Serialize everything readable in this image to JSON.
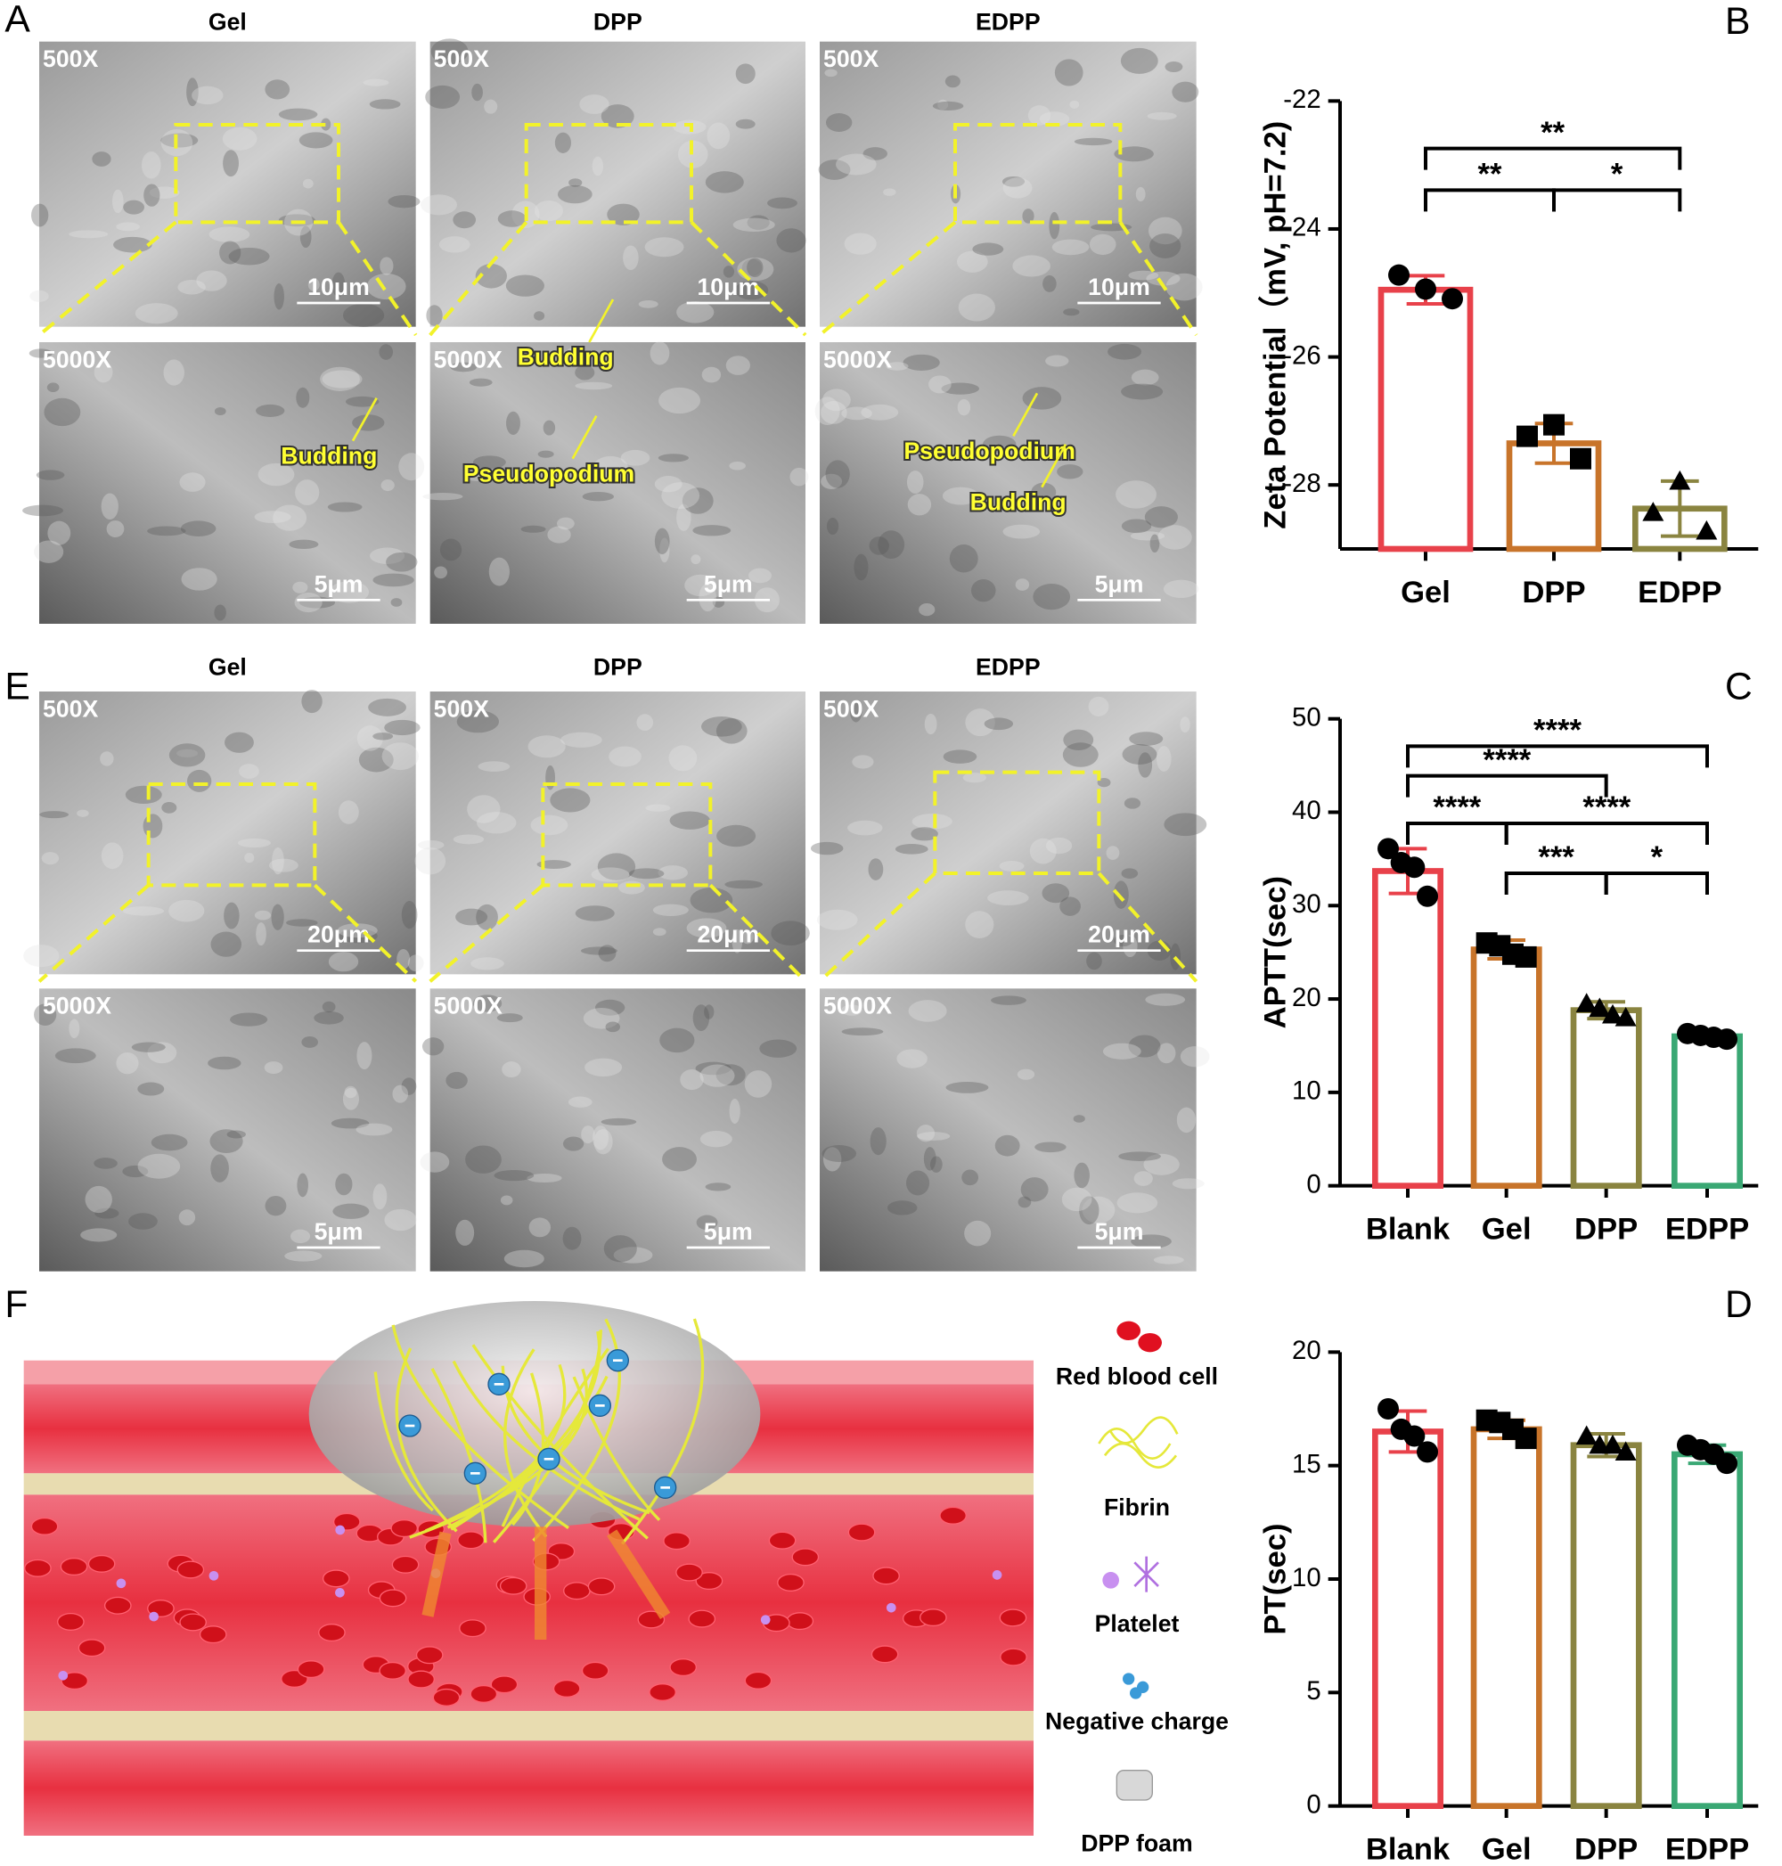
{
  "sem_panels": [
    {
      "letter": "A",
      "columns": [
        "Gel",
        "DPP",
        "EDPP"
      ],
      "low_mag": "500X",
      "high_mag": "5000X",
      "low_scale": "10μm",
      "high_scale": "5μm",
      "notes": [
        [
          "Budding"
        ],
        [
          "Budding",
          "Pseudopodium"
        ],
        [
          "Pseudopodium",
          "Budding"
        ]
      ]
    },
    {
      "letter": "E",
      "columns": [
        "Gel",
        "DPP",
        "EDPP"
      ],
      "low_mag": "500X",
      "high_mag": "5000X",
      "low_scale": "20μm",
      "high_scale": "5μm"
    }
  ],
  "schematic": {
    "letter": "F",
    "legend": [
      "Red blood cell",
      "Fibrin",
      "Platelet",
      "Negative charge",
      "DPP foam"
    ]
  },
  "chart_data": [
    {
      "type": "bar",
      "panel_label": "B",
      "ylabel": "Zeta Potential（mV, pH=7.2)",
      "categories": [
        "Gel",
        "DPP",
        "EDPP"
      ],
      "values": [
        -24.95,
        -27.35,
        -28.37
      ],
      "errors": [
        0.22,
        0.31,
        0.43
      ],
      "points": [
        [
          -24.72,
          -24.94,
          -25.09
        ],
        [
          -27.24,
          -27.06,
          -27.59
        ],
        [
          -28.43,
          -27.94,
          -28.72
        ]
      ],
      "colors": [
        "#e8414a",
        "#c8742a",
        "#8a8440"
      ],
      "markers": [
        "circle",
        "square",
        "triangle"
      ],
      "ylim": [
        -29,
        -22
      ],
      "yticks": [
        -28,
        -26,
        -24,
        -22
      ],
      "annotations": [
        "**",
        "**",
        "*"
      ]
    },
    {
      "type": "bar",
      "panel_label": "C",
      "ylabel": "APTT(sec)",
      "categories": [
        "Blank",
        "Gel",
        "DPP",
        "EDPP"
      ],
      "values": [
        33.7,
        25.3,
        18.8,
        16.0
      ],
      "errors": [
        2.4,
        1.0,
        0.9,
        0.4
      ],
      "points": [
        [
          36.1,
          34.6,
          34.1,
          31.0
        ],
        [
          26.0,
          25.7,
          24.8,
          24.5
        ],
        [
          19.5,
          19.0,
          18.3,
          18.0
        ],
        [
          16.3,
          16.1,
          15.9,
          15.7
        ]
      ],
      "colors": [
        "#e8414a",
        "#c8742a",
        "#8a8440",
        "#3aa874"
      ],
      "markers": [
        "circle",
        "square",
        "triangle",
        "circle"
      ],
      "ylim": [
        0,
        50
      ],
      "yticks": [
        0,
        10,
        20,
        30,
        40,
        50
      ],
      "annotations": [
        "****",
        "****",
        "****",
        "****",
        "***",
        "*"
      ]
    },
    {
      "type": "bar",
      "panel_label": "D",
      "ylabel": "PT(sec)",
      "categories": [
        "Blank",
        "Gel",
        "DPP",
        "EDPP"
      ],
      "values": [
        16.5,
        16.6,
        15.9,
        15.5
      ],
      "errors": [
        0.9,
        0.4,
        0.5,
        0.4
      ],
      "points": [
        [
          17.5,
          16.6,
          16.3,
          15.6
        ],
        [
          17.0,
          16.9,
          16.6,
          16.2
        ],
        [
          16.3,
          15.9,
          15.9,
          15.6
        ],
        [
          15.9,
          15.7,
          15.5,
          15.1
        ]
      ],
      "colors": [
        "#e8414a",
        "#c8742a",
        "#8a8440",
        "#3aa874"
      ],
      "markers": [
        "circle",
        "square",
        "triangle",
        "circle"
      ],
      "ylim": [
        0,
        20
      ],
      "yticks": [
        0,
        5,
        10,
        15,
        20
      ]
    }
  ]
}
